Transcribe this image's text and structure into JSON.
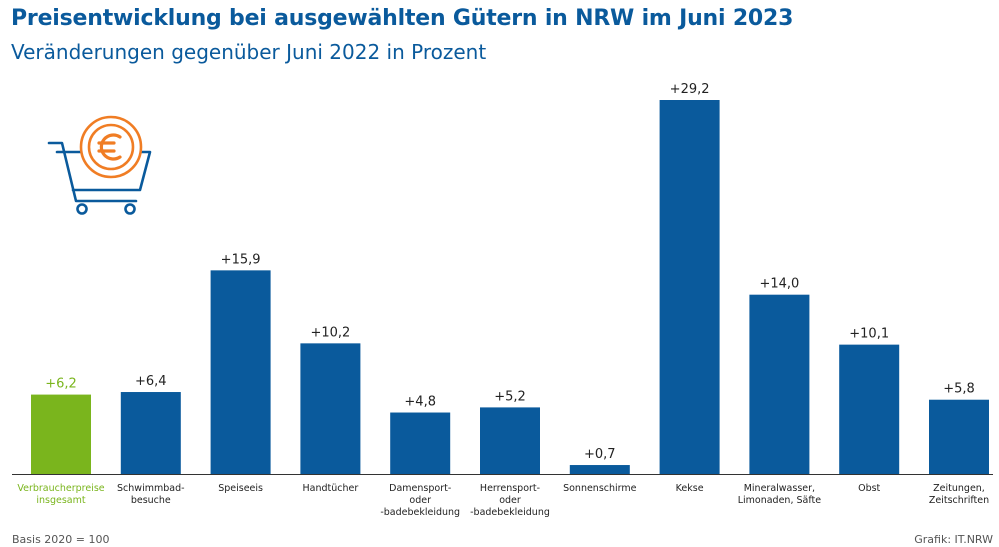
{
  "header": {
    "title": "Preisentwicklung bei ausgewählten Gütern in NRW im Juni 2023",
    "subtitle": "Veränderungen gegenüber Juni 2022 in Prozent"
  },
  "footer": {
    "basis": "Basis 2020 = 100",
    "source": "Grafik: IT.NRW"
  },
  "icon": {
    "name": "shopping-cart-euro-icon"
  },
  "colors": {
    "highlight": "#7ab51d",
    "bar": "#0a5a9c",
    "icon_accent": "#f07d24",
    "icon_line": "#0a5a9c"
  },
  "chart_data": {
    "type": "bar",
    "title": "Preisentwicklung bei ausgewählten Gütern in NRW im Juni 2023",
    "subtitle": "Veränderungen gegenüber Juni 2022 in Prozent",
    "ylim": [
      0,
      30
    ],
    "grid": false,
    "categories": [
      [
        "Verbraucherpreise",
        "insgesamt"
      ],
      [
        "Schwimmbad-",
        "besuche"
      ],
      [
        "Speiseeis"
      ],
      [
        "Handtücher"
      ],
      [
        "Damensport-",
        "oder",
        "-badebekleidung"
      ],
      [
        "Herrensport-",
        "oder",
        "-badebekleidung"
      ],
      [
        "Sonnenschirme"
      ],
      [
        "Kekse"
      ],
      [
        "Mineralwasser,",
        "Limonaden, Säfte"
      ],
      [
        "Obst"
      ],
      [
        "Zeitungen,",
        "Zeitschriften"
      ]
    ],
    "values": [
      6.2,
      6.4,
      15.9,
      10.2,
      4.8,
      5.2,
      0.7,
      29.2,
      14.0,
      10.1,
      5.8
    ],
    "value_labels": [
      "+6,2",
      "+6,4",
      "+15,9",
      "+10,2",
      "+4,8",
      "+5,2",
      "+0,7",
      "+29,2",
      "+14,0",
      "+10,1",
      "+5,8"
    ],
    "highlight_index": 0
  }
}
